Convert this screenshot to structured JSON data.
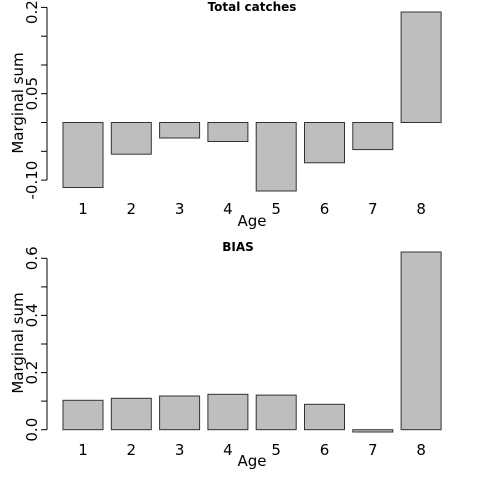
{
  "chart_data": [
    {
      "type": "bar",
      "title": "Total catches",
      "xlabel": "Age",
      "ylabel": "Marginal sum",
      "categories": [
        "1",
        "2",
        "3",
        "4",
        "5",
        "6",
        "7",
        "8"
      ],
      "values": [
        -0.113,
        -0.055,
        -0.027,
        -0.033,
        -0.119,
        -0.07,
        -0.047,
        0.192
      ],
      "yticks": [
        -0.1,
        -0.05,
        0.0,
        0.05,
        0.1,
        0.15,
        0.2
      ],
      "ytick_labels": [
        "-0.10",
        "",
        "",
        "0.05",
        "",
        "",
        "0.20"
      ],
      "ylim": [
        -0.119,
        0.192
      ],
      "bar_fill": "#bebebe",
      "grid": false
    },
    {
      "type": "bar",
      "title": "BIAS",
      "xlabel": "Age",
      "ylabel": "Marginal sum",
      "categories": [
        "1",
        "2",
        "3",
        "4",
        "5",
        "6",
        "7",
        "8"
      ],
      "values": [
        0.103,
        0.11,
        0.118,
        0.124,
        0.121,
        0.089,
        -0.008,
        0.622
      ],
      "yticks": [
        0.0,
        0.1,
        0.2,
        0.3,
        0.4,
        0.5,
        0.6
      ],
      "ytick_labels": [
        "0.0",
        "",
        "0.2",
        "",
        "0.4",
        "",
        "0.6"
      ],
      "ylim": [
        -0.008,
        0.622
      ],
      "bar_fill": "#bebebe",
      "grid": false
    }
  ]
}
